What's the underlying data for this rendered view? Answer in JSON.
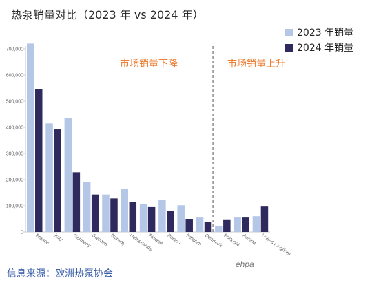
{
  "chart_data": {
    "type": "bar",
    "title": "热泵销量对比（2023 年  vs 2024 年）",
    "xlabel": "",
    "ylabel": "",
    "ylim": [
      0,
      700000
    ],
    "yticks": [
      0,
      100000,
      200000,
      300000,
      400000,
      500000,
      600000,
      700000
    ],
    "ytick_labels": [
      "0",
      "100,000",
      "200,000",
      "300,000",
      "400,000",
      "500,000",
      "600,000",
      "700,000"
    ],
    "categories": [
      "France",
      "Italy",
      "Germany",
      "Sweden",
      "Norway",
      "Netherlands",
      "Finland",
      "Poland",
      "Belgium",
      "Denmark",
      "Portugal",
      "Austria",
      "United Kingdom"
    ],
    "series": [
      {
        "name": "2023 年销量",
        "color": "#b4c7e7",
        "values": [
          720000,
          415000,
          435000,
          190000,
          143000,
          165000,
          108000,
          123000,
          102000,
          55000,
          22000,
          55000,
          60000
        ]
      },
      {
        "name": "2024 年销量",
        "color": "#2e2a5e",
        "values": [
          545000,
          392000,
          228000,
          143000,
          128000,
          115000,
          95000,
          80000,
          50000,
          38000,
          48000,
          55000,
          97000
        ]
      }
    ],
    "grid": false,
    "legend_position": "top-right",
    "annotations": {
      "left_region": "市场销量下降",
      "right_region": "市场销量上升",
      "annotation_color": "#ed7d31"
    },
    "divider_after_category": "Denmark"
  },
  "source": "信息来源：欧洲热泵协会",
  "logo_text": "ehpa"
}
